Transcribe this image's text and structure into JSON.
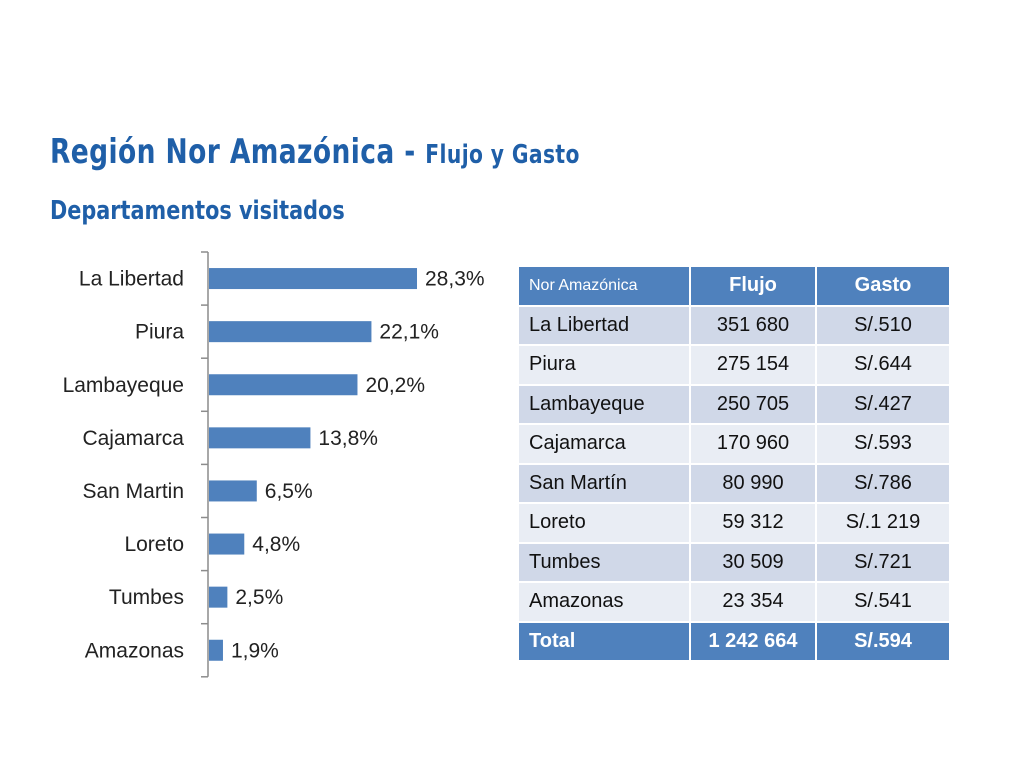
{
  "header": {
    "title_main": "Región Nor Amazónica - ",
    "title_small": "Flujo y Gasto",
    "subtitle": "Departamentos visitados"
  },
  "chart_data": {
    "type": "bar",
    "orientation": "horizontal",
    "categories": [
      "La Libertad",
      "Piura",
      "Lambayeque",
      "Cajamarca",
      "San Martin",
      "Loreto",
      "Tumbes",
      "Amazonas"
    ],
    "values": [
      28.3,
      22.1,
      20.2,
      13.8,
      6.5,
      4.8,
      2.5,
      1.9
    ],
    "value_labels": [
      "28,3%",
      "22,1%",
      "20,2%",
      "13,8%",
      "6,5%",
      "4,8%",
      "2,5%",
      "1,9%"
    ],
    "bar_color": "#4f81bd",
    "grid": false,
    "legend": "none"
  },
  "table": {
    "headers": [
      "Nor Amazónica",
      "Flujo",
      "Gasto"
    ],
    "rows": [
      [
        "La Libertad",
        "351 680",
        "S/.510"
      ],
      [
        "Piura",
        "275 154",
        "S/.644"
      ],
      [
        "Lambayeque",
        "250 705",
        "S/.427"
      ],
      [
        "Cajamarca",
        "170 960",
        "S/.593"
      ],
      [
        "San Martín",
        "80 990",
        "S/.786"
      ],
      [
        "Loreto",
        "59 312",
        "S/.1 219"
      ],
      [
        "Tumbes",
        "30 509",
        "S/.721"
      ],
      [
        "Amazonas",
        "23 354",
        "S/.541"
      ]
    ],
    "total": [
      "Total",
      "1 242 664",
      "S/.594"
    ]
  },
  "colors": {
    "title": "#1f5fa8",
    "header_fill": "#4f81bd",
    "row_band_dark": "#d0d8e8",
    "row_band_light": "#e9edf4"
  }
}
